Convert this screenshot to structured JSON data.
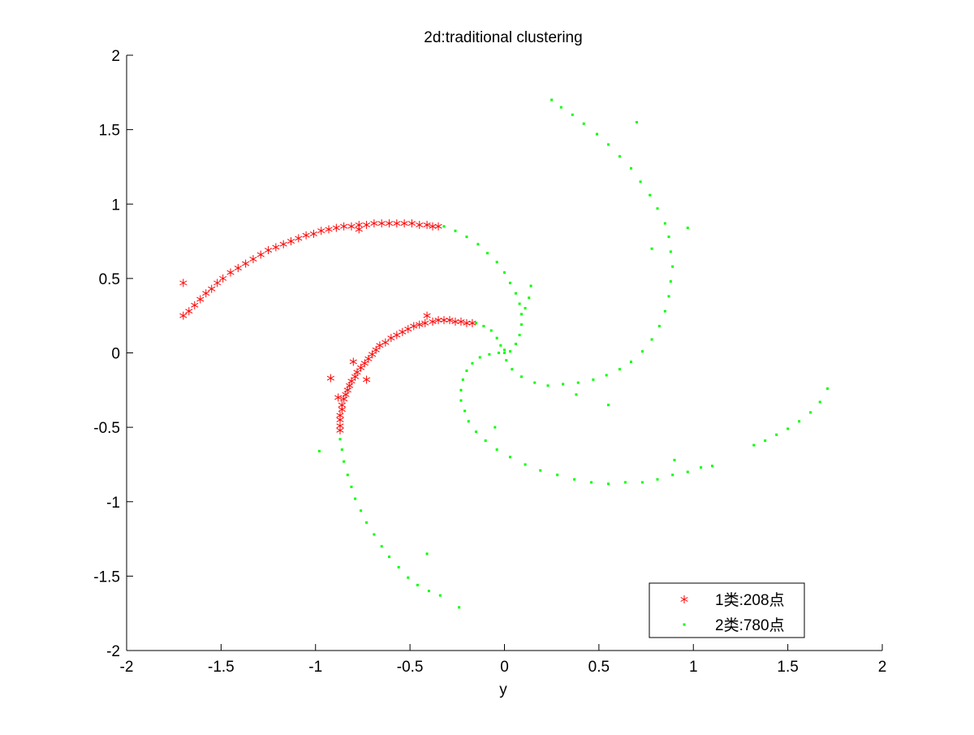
{
  "chart_data": {
    "type": "scatter",
    "title": "2d:traditional clustering",
    "xlabel": "y",
    "ylabel": "",
    "xlim": [
      -2,
      2
    ],
    "ylim": [
      -2,
      2
    ],
    "xticks": [
      -2,
      -1.5,
      -1,
      -0.5,
      0,
      0.5,
      1,
      1.5,
      2
    ],
    "yticks": [
      -2,
      -1.5,
      -1,
      -0.5,
      0,
      0.5,
      1,
      1.5,
      2
    ],
    "xtick_labels": [
      "-2",
      "-1.5",
      "-1",
      "-0.5",
      "0",
      "0.5",
      "1",
      "1.5",
      "2"
    ],
    "ytick_labels": [
      "-2",
      "-1.5",
      "-1",
      "-0.5",
      "0",
      "0.5",
      "1",
      "1.5",
      "2"
    ],
    "grid": false,
    "legend_position": "bottom-right",
    "series": [
      {
        "name": "1类:208点",
        "marker": "asterisk",
        "color": "#ff0000",
        "points": [
          [
            -1.7,
            0.47
          ],
          [
            -1.7,
            0.25
          ],
          [
            -1.67,
            0.28
          ],
          [
            -1.64,
            0.32
          ],
          [
            -1.61,
            0.36
          ],
          [
            -1.58,
            0.4
          ],
          [
            -1.55,
            0.43
          ],
          [
            -1.52,
            0.47
          ],
          [
            -1.49,
            0.5
          ],
          [
            -1.45,
            0.54
          ],
          [
            -1.41,
            0.57
          ],
          [
            -1.37,
            0.6
          ],
          [
            -1.33,
            0.63
          ],
          [
            -1.29,
            0.66
          ],
          [
            -1.25,
            0.69
          ],
          [
            -1.21,
            0.71
          ],
          [
            -1.17,
            0.73
          ],
          [
            -1.13,
            0.75
          ],
          [
            -1.09,
            0.77
          ],
          [
            -1.05,
            0.79
          ],
          [
            -1.01,
            0.8
          ],
          [
            -0.97,
            0.82
          ],
          [
            -0.93,
            0.83
          ],
          [
            -0.89,
            0.84
          ],
          [
            -0.85,
            0.85
          ],
          [
            -0.81,
            0.85
          ],
          [
            -0.77,
            0.86
          ],
          [
            -0.77,
            0.83
          ],
          [
            -0.73,
            0.86
          ],
          [
            -0.69,
            0.87
          ],
          [
            -0.65,
            0.87
          ],
          [
            -0.61,
            0.87
          ],
          [
            -0.57,
            0.87
          ],
          [
            -0.53,
            0.87
          ],
          [
            -0.49,
            0.87
          ],
          [
            -0.45,
            0.86
          ],
          [
            -0.41,
            0.86
          ],
          [
            -0.38,
            0.85
          ],
          [
            -0.35,
            0.85
          ],
          [
            -0.17,
            0.2
          ],
          [
            -0.2,
            0.2
          ],
          [
            -0.23,
            0.21
          ],
          [
            -0.26,
            0.21
          ],
          [
            -0.29,
            0.22
          ],
          [
            -0.32,
            0.22
          ],
          [
            -0.35,
            0.22
          ],
          [
            -0.38,
            0.21
          ],
          [
            -0.41,
            0.25
          ],
          [
            -0.42,
            0.2
          ],
          [
            -0.45,
            0.19
          ],
          [
            -0.48,
            0.18
          ],
          [
            -0.51,
            0.16
          ],
          [
            -0.54,
            0.14
          ],
          [
            -0.57,
            0.12
          ],
          [
            -0.6,
            0.1
          ],
          [
            -0.63,
            0.07
          ],
          [
            -0.66,
            0.05
          ],
          [
            -0.68,
            0.02
          ],
          [
            -0.7,
            -0.01
          ],
          [
            -0.72,
            -0.04
          ],
          [
            -0.74,
            -0.07
          ],
          [
            -0.76,
            -0.1
          ],
          [
            -0.78,
            -0.13
          ],
          [
            -0.79,
            -0.16
          ],
          [
            -0.81,
            -0.19
          ],
          [
            -0.82,
            -0.22
          ],
          [
            -0.83,
            -0.25
          ],
          [
            -0.84,
            -0.28
          ],
          [
            -0.85,
            -0.31
          ],
          [
            -0.86,
            -0.35
          ],
          [
            -0.86,
            -0.38
          ],
          [
            -0.87,
            -0.42
          ],
          [
            -0.87,
            -0.45
          ],
          [
            -0.87,
            -0.49
          ],
          [
            -0.87,
            -0.52
          ],
          [
            -0.92,
            -0.17
          ],
          [
            -0.8,
            -0.06
          ],
          [
            -0.73,
            -0.18
          ],
          [
            -0.88,
            -0.3
          ]
        ]
      },
      {
        "name": "2类:780点",
        "marker": "dot",
        "color": "#00ff00",
        "points": [
          [
            0.25,
            1.7
          ],
          [
            0.3,
            1.65
          ],
          [
            0.36,
            1.6
          ],
          [
            0.42,
            1.54
          ],
          [
            0.49,
            1.47
          ],
          [
            0.55,
            1.4
          ],
          [
            0.61,
            1.32
          ],
          [
            0.67,
            1.24
          ],
          [
            0.72,
            1.15
          ],
          [
            0.77,
            1.06
          ],
          [
            0.81,
            0.97
          ],
          [
            0.85,
            0.87
          ],
          [
            0.87,
            0.78
          ],
          [
            0.88,
            0.68
          ],
          [
            0.89,
            0.58
          ],
          [
            0.88,
            0.48
          ],
          [
            0.87,
            0.38
          ],
          [
            0.85,
            0.28
          ],
          [
            0.82,
            0.18
          ],
          [
            0.78,
            0.09
          ],
          [
            0.73,
            0.01
          ],
          [
            0.67,
            -0.06
          ],
          [
            0.61,
            -0.11
          ],
          [
            0.54,
            -0.15
          ],
          [
            0.47,
            -0.18
          ],
          [
            0.39,
            -0.2
          ],
          [
            0.31,
            -0.21
          ],
          [
            0.23,
            -0.22
          ],
          [
            0.16,
            -0.2
          ],
          [
            0.09,
            -0.16
          ],
          [
            0.04,
            -0.11
          ],
          [
            0.01,
            -0.05
          ],
          [
            0.0,
            0.0
          ],
          [
            0.7,
            1.55
          ],
          [
            0.97,
            0.84
          ],
          [
            0.78,
            0.7
          ],
          [
            0.38,
            -0.28
          ],
          [
            0.55,
            -0.35
          ],
          [
            -0.32,
            0.85
          ],
          [
            -0.26,
            0.82
          ],
          [
            -0.2,
            0.78
          ],
          [
            -0.14,
            0.73
          ],
          [
            -0.09,
            0.67
          ],
          [
            -0.04,
            0.61
          ],
          [
            0.0,
            0.54
          ],
          [
            0.03,
            0.47
          ],
          [
            0.06,
            0.4
          ],
          [
            0.08,
            0.33
          ],
          [
            0.09,
            0.26
          ],
          [
            0.09,
            0.19
          ],
          [
            0.08,
            0.12
          ],
          [
            0.06,
            0.06
          ],
          [
            0.03,
            0.01
          ],
          [
            0.13,
            0.37
          ],
          [
            0.11,
            0.3
          ],
          [
            0.14,
            0.45
          ],
          [
            -0.15,
            0.2
          ],
          [
            -0.11,
            0.18
          ],
          [
            -0.07,
            0.15
          ],
          [
            -0.04,
            0.1
          ],
          [
            -0.02,
            0.05
          ],
          [
            0.0,
            0.02
          ],
          [
            -0.03,
            0.0
          ],
          [
            -0.08,
            -0.01
          ],
          [
            -0.13,
            -0.03
          ],
          [
            -0.17,
            -0.07
          ],
          [
            -0.2,
            -0.12
          ],
          [
            -0.22,
            -0.18
          ],
          [
            -0.23,
            -0.25
          ],
          [
            -0.23,
            -0.32
          ],
          [
            -0.21,
            -0.39
          ],
          [
            -0.19,
            -0.46
          ],
          [
            -0.15,
            -0.53
          ],
          [
            -0.1,
            -0.59
          ],
          [
            -0.04,
            -0.65
          ],
          [
            0.03,
            -0.7
          ],
          [
            0.11,
            -0.75
          ],
          [
            0.19,
            -0.79
          ],
          [
            0.28,
            -0.82
          ],
          [
            0.37,
            -0.85
          ],
          [
            0.46,
            -0.87
          ],
          [
            0.55,
            -0.88
          ],
          [
            0.64,
            -0.87
          ],
          [
            0.73,
            -0.87
          ],
          [
            0.81,
            -0.85
          ],
          [
            0.89,
            -0.82
          ],
          [
            0.97,
            -0.8
          ],
          [
            1.04,
            -0.77
          ],
          [
            1.1,
            -0.76
          ],
          [
            -0.05,
            -0.5
          ],
          [
            0.9,
            -0.72
          ],
          [
            -0.87,
            -0.58
          ],
          [
            -0.86,
            -0.65
          ],
          [
            -0.85,
            -0.73
          ],
          [
            -0.83,
            -0.82
          ],
          [
            -0.81,
            -0.9
          ],
          [
            -0.79,
            -0.98
          ],
          [
            -0.76,
            -1.06
          ],
          [
            -0.73,
            -1.14
          ],
          [
            -0.69,
            -1.22
          ],
          [
            -0.65,
            -1.3
          ],
          [
            -0.61,
            -1.37
          ],
          [
            -0.56,
            -1.44
          ],
          [
            -0.51,
            -1.51
          ],
          [
            -0.46,
            -1.56
          ],
          [
            -0.4,
            -1.6
          ],
          [
            -0.34,
            -1.63
          ],
          [
            -0.24,
            -1.71
          ],
          [
            -0.98,
            -0.66
          ],
          [
            -0.41,
            -1.35
          ],
          [
            1.32,
            -0.62
          ],
          [
            1.38,
            -0.59
          ],
          [
            1.44,
            -0.55
          ],
          [
            1.5,
            -0.51
          ],
          [
            1.56,
            -0.46
          ],
          [
            1.62,
            -0.4
          ],
          [
            1.67,
            -0.33
          ],
          [
            1.71,
            -0.24
          ]
        ]
      }
    ]
  }
}
